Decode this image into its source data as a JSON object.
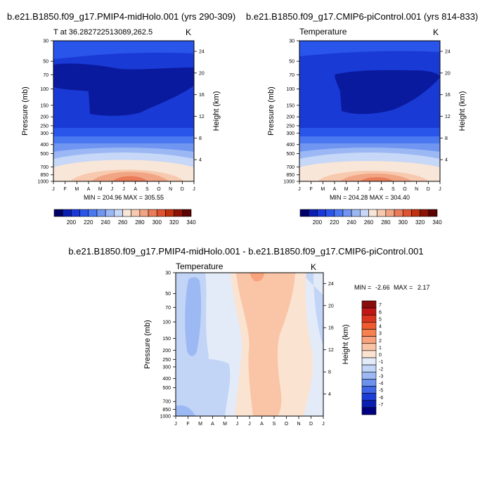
{
  "chart_data": [
    {
      "type": "heatmap",
      "title": "b.e21.B1850.f09_g17.PMIP4-midHolo.001 (yrs 290-309)",
      "subtitle_left": "T at 36.282722513089,262.5",
      "subtitle_right": "K",
      "ylabel": "Pressure (mb)",
      "ylabel_right": "Height (km)",
      "x_ticks": [
        "J",
        "F",
        "M",
        "A",
        "M",
        "J",
        "J",
        "A",
        "S",
        "O",
        "N",
        "D",
        "J"
      ],
      "y_ticks": [
        "30",
        "50",
        "70",
        "100",
        "150",
        "200",
        "250",
        "300",
        "400",
        "500",
        "700",
        "850",
        "1000"
      ],
      "y_right_ticks": [
        "24",
        "20",
        "16",
        "12",
        "8",
        "4"
      ],
      "stats": "MIN = 204.96 MAX = 305.55",
      "min": 204.96,
      "max": 305.55,
      "colorbar": {
        "labels": [
          "200",
          "220",
          "240",
          "260",
          "280",
          "300",
          "320",
          "340"
        ],
        "colors": [
          "#000066",
          "#0a1fb0",
          "#1838d8",
          "#2a55ea",
          "#4a78f0",
          "#7096f2",
          "#9bb8f4",
          "#c6d7f7",
          "#f8e6d8",
          "#f7c9ae",
          "#f2a584",
          "#ea7c59",
          "#de5431",
          "#c1310f",
          "#8c1205",
          "#5c0000"
        ]
      }
    },
    {
      "type": "heatmap",
      "title": "b.e21.B1850.f09_g17.CMIP6-piControl.001 (yrs 814-833)",
      "subtitle_left": "Temperature",
      "subtitle_right": "K",
      "ylabel": "Pressure (mb)",
      "ylabel_right": "Height (km)",
      "x_ticks": [
        "J",
        "F",
        "M",
        "A",
        "M",
        "J",
        "J",
        "A",
        "S",
        "O",
        "N",
        "D",
        "J"
      ],
      "y_ticks": [
        "30",
        "50",
        "70",
        "100",
        "150",
        "200",
        "250",
        "300",
        "400",
        "500",
        "700",
        "850",
        "1000"
      ],
      "y_right_ticks": [
        "24",
        "20",
        "16",
        "12",
        "8",
        "4"
      ],
      "stats": "MIN = 204.28 MAX = 304.40",
      "min": 204.28,
      "max": 304.4,
      "colorbar": {
        "labels": [
          "200",
          "220",
          "240",
          "260",
          "280",
          "300",
          "320",
          "340"
        ],
        "colors": [
          "#000066",
          "#0a1fb0",
          "#1838d8",
          "#2a55ea",
          "#4a78f0",
          "#7096f2",
          "#9bb8f4",
          "#c6d7f7",
          "#f8e6d8",
          "#f7c9ae",
          "#f2a584",
          "#ea7c59",
          "#de5431",
          "#c1310f",
          "#8c1205",
          "#5c0000"
        ]
      }
    },
    {
      "type": "heatmap",
      "title": "b.e21.B1850.f09_g17.PMIP4-midHolo.001 - b.e21.B1850.f09_g17.CMIP6-piControl.001",
      "subtitle_left": "Temperature",
      "subtitle_right": "K",
      "ylabel": "Pressure (mb)",
      "ylabel_right": "Height (km)",
      "x_ticks": [
        "J",
        "F",
        "M",
        "A",
        "M",
        "J",
        "J",
        "A",
        "S",
        "O",
        "N",
        "D",
        "J"
      ],
      "y_ticks": [
        "30",
        "50",
        "70",
        "100",
        "150",
        "200",
        "250",
        "300",
        "400",
        "500",
        "700",
        "850",
        "1000"
      ],
      "y_right_ticks": [
        "24",
        "20",
        "16",
        "12",
        "8",
        "4"
      ],
      "stats_label_min": "MIN =",
      "stats_min": "-2.66",
      "stats_label_max": "MAX =",
      "stats_max": "2.17",
      "min": -2.66,
      "max": 2.17,
      "colorbar": {
        "labels": [
          "7",
          "6",
          "5",
          "4",
          "3",
          "2",
          "1",
          "0",
          "-1",
          "-2",
          "-3",
          "-4",
          "-5",
          "-6",
          "-7"
        ],
        "colors": [
          "#8a0d0d",
          "#c01616",
          "#db3520",
          "#ef5a30",
          "#f7814f",
          "#f8a37d",
          "#f9c5a6",
          "#fbe3d1",
          "#e3ebf9",
          "#c2d5f7",
          "#9cb9f3",
          "#6c92ee",
          "#3e66e6",
          "#1c3ed8",
          "#0b1fb2",
          "#000080"
        ]
      }
    }
  ]
}
